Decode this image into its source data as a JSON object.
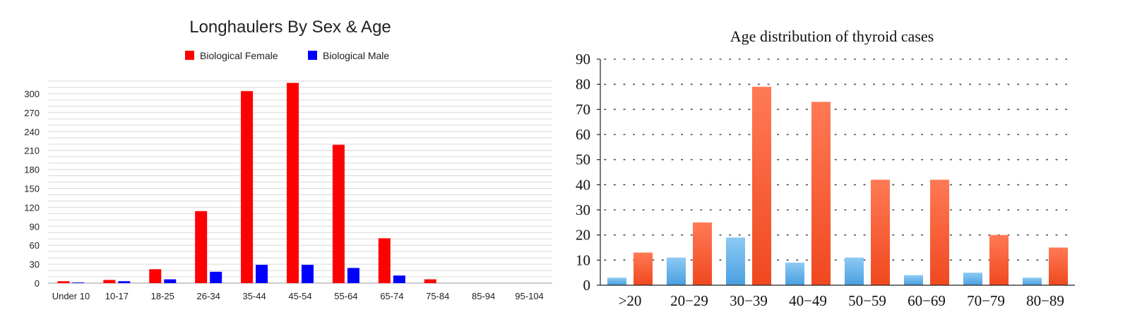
{
  "chart_data": [
    {
      "type": "bar",
      "title": "Longhaulers By Sex & Age",
      "xlabel": "",
      "ylabel": "",
      "categories": [
        "Under 10",
        "10-17",
        "18-25",
        "26-34",
        "35-44",
        "45-54",
        "55-64",
        "65-74",
        "75-84",
        "85-94",
        "95-104"
      ],
      "series": [
        {
          "name": "Biological Female",
          "color": "#ff0000",
          "values": [
            3,
            5,
            22,
            114,
            304,
            317,
            219,
            71,
            6,
            0,
            0
          ]
        },
        {
          "name": "Biological Male",
          "color": "#0000ff",
          "values": [
            1,
            3,
            6,
            18,
            29,
            29,
            24,
            12,
            0,
            0,
            0
          ]
        }
      ],
      "yticks": [
        "0",
        "30",
        "60",
        "90",
        "120",
        "150",
        "180",
        "210",
        "240",
        "270",
        "300"
      ],
      "ylim": [
        0,
        320
      ],
      "grid": true,
      "legend_position": "top"
    },
    {
      "type": "bar",
      "title": "Age distribution of thyroid cases",
      "xlabel": "",
      "ylabel": "",
      "categories": [
        ">20",
        "20−29",
        "30−39",
        "40−49",
        "50−59",
        "60−69",
        "70−79",
        "80−89"
      ],
      "series": [
        {
          "color": "#6bb5ea",
          "values": [
            3,
            11,
            19,
            9,
            11,
            4,
            5,
            3
          ]
        },
        {
          "color": "#ff6a40",
          "values": [
            13,
            25,
            79,
            73,
            42,
            42,
            20,
            15
          ]
        }
      ],
      "yticks": [
        "0",
        "10",
        "20",
        "30",
        "40",
        "50",
        "60",
        "70",
        "80",
        "90"
      ],
      "ylim": [
        0,
        90
      ],
      "grid": true,
      "grid_style": "dotted"
    }
  ]
}
